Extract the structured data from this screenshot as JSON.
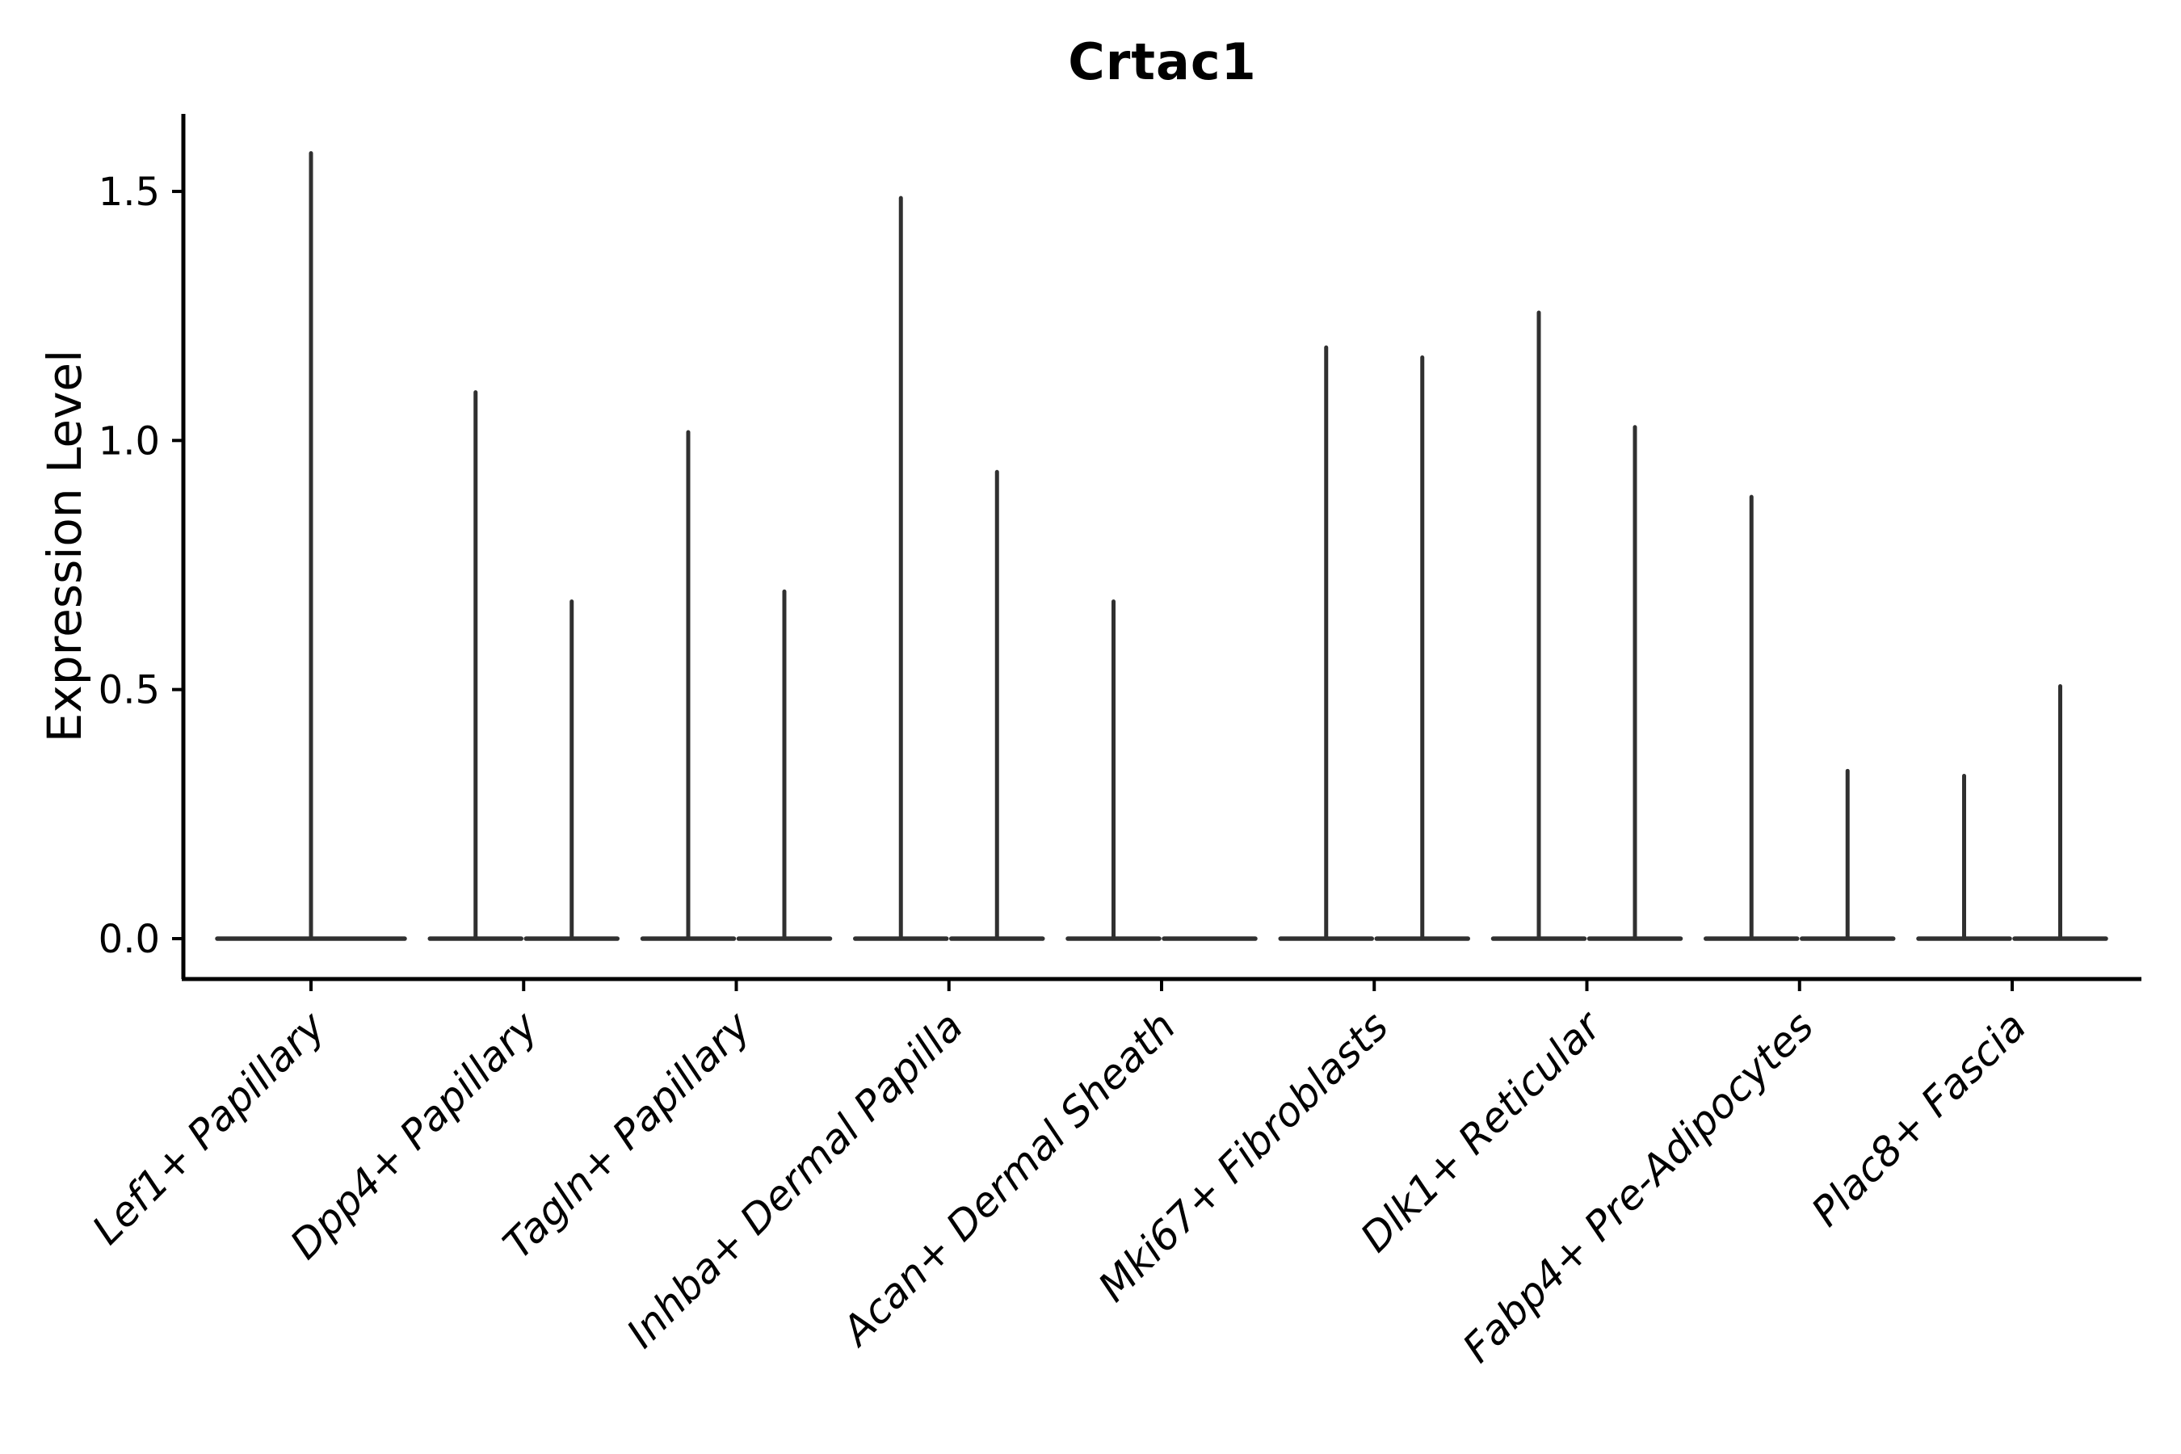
{
  "chart_data": {
    "type": "violin",
    "title": "Crtac1",
    "ylabel": "Expression Level",
    "xlabel": "",
    "grid": false,
    "legend": "none",
    "ylim": [
      -0.08,
      1.66
    ],
    "yticks": [
      {
        "value": 0.0,
        "label": "0.0"
      },
      {
        "value": 0.5,
        "label": "0.5"
      },
      {
        "value": 1.0,
        "label": "1.0"
      },
      {
        "value": 1.5,
        "label": "1.5"
      }
    ],
    "categories": [
      {
        "label": "Lef1+ Papillary",
        "violins": [
          {
            "position": "center",
            "max_expression": 1.58
          }
        ]
      },
      {
        "label": "Dpp4+ Papillary",
        "violins": [
          {
            "position": "left",
            "max_expression": 1.1
          },
          {
            "position": "right",
            "max_expression": 0.68
          }
        ]
      },
      {
        "label": "Tagln+ Papillary",
        "violins": [
          {
            "position": "left",
            "max_expression": 1.02
          },
          {
            "position": "right",
            "max_expression": 0.7
          }
        ]
      },
      {
        "label": "Inhba+ Dermal Papilla",
        "violins": [
          {
            "position": "left",
            "max_expression": 1.49
          },
          {
            "position": "right",
            "max_expression": 0.94
          }
        ]
      },
      {
        "label": "Acan+ Dermal Sheath",
        "violins": [
          {
            "position": "left",
            "max_expression": 0.68
          },
          {
            "position": "right",
            "max_expression": 0.0
          }
        ]
      },
      {
        "label": "Mki67+ Fibroblasts",
        "violins": [
          {
            "position": "left",
            "max_expression": 1.19
          },
          {
            "position": "right",
            "max_expression": 1.17
          }
        ]
      },
      {
        "label": "Dlk1+ Reticular",
        "violins": [
          {
            "position": "left",
            "max_expression": 1.26
          },
          {
            "position": "right",
            "max_expression": 1.03
          }
        ]
      },
      {
        "label": "Fabp4+ Pre-Adipocytes",
        "violins": [
          {
            "position": "left",
            "max_expression": 0.89
          },
          {
            "position": "right",
            "max_expression": 0.34
          }
        ]
      },
      {
        "label": "Plac8+ Fascia",
        "violins": [
          {
            "position": "left",
            "max_expression": 0.33
          },
          {
            "position": "right",
            "max_expression": 0.51
          }
        ]
      }
    ],
    "colors": {
      "violin": "#303030",
      "axis": "#000000",
      "text": "#000000",
      "background": "#ffffff"
    }
  }
}
